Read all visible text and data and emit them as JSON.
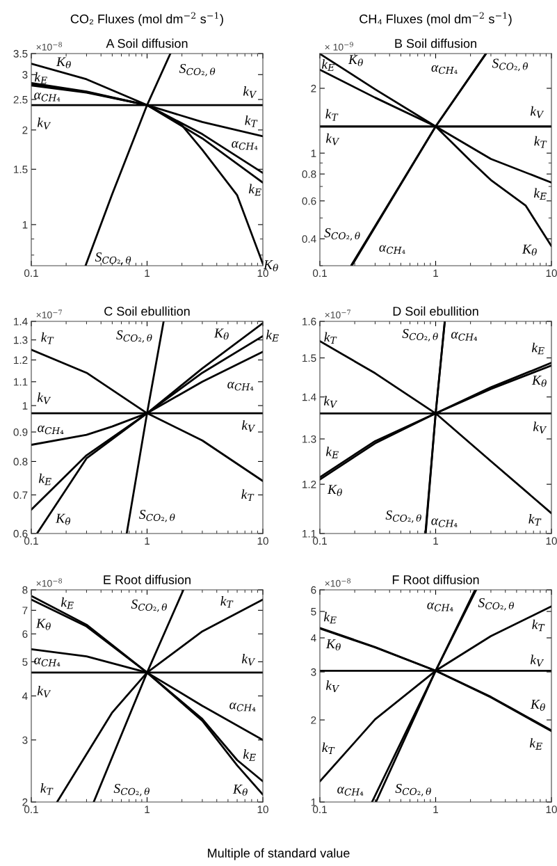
{
  "chart_data": [
    {
      "type": "line",
      "subtitle": "CO₂ Fluxes (mol dm$^{−2}$ s$^{−1}$)",
      "title": "A Soil diffusion",
      "log": "xy",
      "xlim": [
        0.1,
        10
      ],
      "xticks": [
        0.1,
        1,
        10
      ],
      "ylim": [
        0.74,
        3.5
      ],
      "yticks": [
        1,
        1.5,
        2,
        2.5,
        3,
        3.5
      ],
      "series": [
        {
          "color": "#000000",
          "x": [
            0.1,
            10
          ],
          "values": [
            2.4,
            2.4
          ]
        },
        {
          "color": "#000000",
          "x": [
            0.1,
            0.3,
            1,
            2,
            3,
            6,
            10
          ],
          "values": [
            3.25,
            2.9,
            2.4,
            2.07,
            1.73,
            1.24,
            0.75
          ]
        },
        {
          "color": "#000000",
          "x": [
            0.1,
            0.3,
            1,
            3,
            10
          ],
          "values": [
            2.82,
            2.65,
            2.4,
            2.12,
            1.91
          ]
        },
        {
          "color": "#000000",
          "x": [
            0.1,
            0.3,
            1,
            3,
            10
          ],
          "values": [
            2.8,
            2.64,
            2.4,
            1.88,
            1.36
          ]
        },
        {
          "color": "#000000",
          "x": [
            0.1,
            0.3,
            1,
            3,
            10
          ],
          "values": [
            2.77,
            2.63,
            2.4,
            1.94,
            1.46
          ]
        },
        {
          "color": "#000000",
          "x": [
            0.294,
            0.5,
            1,
            1.59
          ],
          "values": [
            0.74,
            1.25,
            2.4,
            3.5
          ]
        }
      ],
      "annotations": [
        "×10$^{−8}$",
        {
          "text": "K$_{θ}$",
          "x": 0.1,
          "y": 3.25
        },
        {
          "text": "k$_{E}$",
          "x": 0.1,
          "y": 2.8
        },
        {
          "text": "α$_{CH₄}$",
          "x": 0.1,
          "y": 2.77
        },
        {
          "text": "k$_{V}$",
          "x": 0.1,
          "y": 2.4
        },
        {
          "text": "S$_{CO₂,θ}$",
          "x": 1.59,
          "y": 3.5
        },
        {
          "text": "k$_{V}$",
          "x": 10,
          "y": 2.4
        },
        {
          "text": "k$_{T}$",
          "x": 10,
          "y": 1.91
        },
        {
          "text": "α$_{CH₄}$",
          "x": 10,
          "y": 1.46
        },
        {
          "text": "k$_{E}$",
          "x": 10,
          "y": 1.36
        },
        {
          "text": "K$_{θ}$",
          "x": 10,
          "y": 0.75
        },
        {
          "text": "S$_{CO₂,θ}$",
          "x": 0.294,
          "y": 0.74
        }
      ]
    },
    {
      "type": "line",
      "subtitle": "CH₄ Fluxes (mol dm$^{−2}$ s$^{−1}$)",
      "title": "B Soil diffusion",
      "log": "xy",
      "xlim": [
        0.1,
        10
      ],
      "xticks": [
        0.1,
        1,
        10
      ],
      "ylim": [
        0.3,
        2.9
      ],
      "yticks": [
        0.4,
        0.6,
        0.8,
        1,
        2
      ],
      "series": [
        {
          "color": "#000000",
          "x": [
            0.1,
            10
          ],
          "values": [
            1.33,
            1.33
          ]
        },
        {
          "color": "#000000",
          "x": [
            0.1,
            10
          ],
          "values": [
            1.33,
            1.33
          ]
        },
        {
          "color": "#000000",
          "x": [
            0.1,
            0.3,
            1,
            2,
            3,
            6,
            10
          ],
          "values": [
            2.89,
            1.98,
            1.33,
            0.92,
            0.75,
            0.57,
            0.37
          ]
        },
        {
          "color": "#000000",
          "x": [
            0.1,
            0.3,
            1,
            3,
            10
          ],
          "values": [
            2.44,
            1.81,
            1.33,
            0.94,
            0.73
          ]
        },
        {
          "color": "#000000",
          "x": [
            0.187,
            1,
            2.7
          ],
          "values": [
            0.302,
            1.33,
            2.89
          ]
        },
        {
          "color": "#000000",
          "x": [
            0.19,
            1,
            2.72
          ],
          "values": [
            0.302,
            1.33,
            2.89
          ]
        }
      ],
      "annotations": [
        "× 10$^{−9}$",
        {
          "text": "K$_{θ}$",
          "x": 0.1,
          "y": 2.89
        },
        {
          "text": "k$_{E}$",
          "x": 0.1,
          "y": 2.44
        },
        {
          "text": "α$_{CH₄}$",
          "x": 2.7,
          "y": 2.89
        },
        {
          "text": "S$_{CO₂,θ}$",
          "x": 2.72,
          "y": 2.89
        },
        {
          "text": "k$_{T}$",
          "x": 0.1,
          "y": 1.33
        },
        {
          "text": "k$_{V}$",
          "x": 0.1,
          "y": 1.33
        },
        {
          "text": "k$_{V}$",
          "x": 10,
          "y": 1.33
        },
        {
          "text": "k$_{T}$",
          "x": 10,
          "y": 1.33
        },
        {
          "text": "k$_{E}$",
          "x": 10,
          "y": 0.73
        },
        {
          "text": "K$_{θ}$",
          "x": 10,
          "y": 0.37
        },
        {
          "text": "S$_{CO₂,θ}$",
          "x": 0.19,
          "y": 0.302
        },
        {
          "text": "α$_{CH₄}$",
          "x": 0.187,
          "y": 0.302
        }
      ]
    },
    {
      "type": "line",
      "title": "C Soil ebullition",
      "log": "xy",
      "xlim": [
        0.1,
        10
      ],
      "xticks": [
        0.1,
        1,
        10
      ],
      "ylim": [
        0.6,
        1.4
      ],
      "yticks": [
        0.6,
        0.7,
        0.8,
        0.9,
        1,
        1.1,
        1.2,
        1.3,
        1.4
      ],
      "series": [
        {
          "color": "#000000",
          "x": [
            0.1,
            10
          ],
          "values": [
            0.97,
            0.97
          ]
        },
        {
          "color": "#000000",
          "x": [
            0.1,
            0.3,
            1,
            3,
            10
          ],
          "values": [
            1.25,
            1.14,
            0.97,
            0.87,
            0.74
          ]
        },
        {
          "color": "#000000",
          "x": [
            0.112,
            0.3,
            1,
            3,
            10
          ],
          "values": [
            0.6,
            0.81,
            0.97,
            1.16,
            1.39
          ]
        },
        {
          "color": "#000000",
          "x": [
            0.1,
            0.3,
            1,
            3,
            10
          ],
          "values": [
            0.66,
            0.82,
            0.97,
            1.14,
            1.32
          ]
        },
        {
          "color": "#000000",
          "x": [
            0.1,
            0.3,
            0.5,
            1,
            3,
            10
          ],
          "values": [
            0.855,
            0.89,
            0.92,
            0.97,
            1.1,
            1.24
          ]
        },
        {
          "color": "#000000",
          "x": [
            0.667,
            1,
            1.39
          ],
          "values": [
            0.6,
            0.97,
            1.4
          ]
        }
      ],
      "annotations": [
        "×10$^{−7}$",
        {
          "text": "k$_{T}$",
          "x": 0.1,
          "y": 1.25
        },
        {
          "text": "S$_{CO₂,θ}$",
          "x": 1.39,
          "y": 1.4
        },
        {
          "text": "K$_{θ}$",
          "x": 10,
          "y": 1.39
        },
        {
          "text": "k$_{E}$",
          "x": 10,
          "y": 1.32
        },
        {
          "text": "α$_{CH₄}$",
          "x": 10,
          "y": 1.24
        },
        {
          "text": "k$_{V}$",
          "x": 0.1,
          "y": 0.97
        },
        {
          "text": "k$_{V}$",
          "x": 10,
          "y": 0.97
        },
        {
          "text": "α$_{CH₄}$",
          "x": 0.1,
          "y": 0.855
        },
        {
          "text": "k$_{E}$",
          "x": 0.1,
          "y": 0.66
        },
        {
          "text": "k$_{T}$",
          "x": 10,
          "y": 0.74
        },
        {
          "text": "K$_{θ}$",
          "x": 0.112,
          "y": 0.6
        },
        {
          "text": "S$_{CO₂,θ}$",
          "x": 0.667,
          "y": 0.6
        }
      ]
    },
    {
      "type": "line",
      "title": "D Soil ebullition",
      "log": "xy",
      "xlim": [
        0.1,
        10
      ],
      "xticks": [
        0.1,
        1,
        10
      ],
      "ylim": [
        1.1,
        1.6
      ],
      "yticks": [
        1.1,
        1.2,
        1.3,
        1.4,
        1.5,
        1.6
      ],
      "series": [
        {
          "color": "#000000",
          "x": [
            0.1,
            10
          ],
          "values": [
            1.36,
            1.36
          ]
        },
        {
          "color": "#000000",
          "x": [
            0.1,
            0.3,
            1,
            3,
            10
          ],
          "values": [
            1.545,
            1.46,
            1.36,
            1.25,
            1.14
          ]
        },
        {
          "color": "#000000",
          "x": [
            0.1,
            0.3,
            1,
            3,
            10
          ],
          "values": [
            1.215,
            1.295,
            1.36,
            1.424,
            1.487
          ]
        },
        {
          "color": "#000000",
          "x": [
            0.1,
            0.3,
            1,
            3,
            10
          ],
          "values": [
            1.21,
            1.29,
            1.36,
            1.42,
            1.48
          ]
        },
        {
          "color": "#000000",
          "x": [
            0.815,
            1,
            1.198
          ],
          "values": [
            1.1,
            1.36,
            1.6
          ]
        },
        {
          "color": "#000000",
          "x": [
            0.82,
            1,
            1.2
          ],
          "values": [
            1.1,
            1.36,
            1.6
          ]
        }
      ],
      "annotations": [
        "×10$^{−7}$",
        {
          "text": "k$_{T}$",
          "x": 0.1,
          "y": 1.545
        },
        {
          "text": "S$_{CO₂,θ}$",
          "x": 1.198,
          "y": 1.6
        },
        {
          "text": "α$_{CH₄}$",
          "x": 1.2,
          "y": 1.6
        },
        {
          "text": "k$_{E}$",
          "x": 10,
          "y": 1.487
        },
        {
          "text": "K$_{θ}$",
          "x": 10,
          "y": 1.48
        },
        {
          "text": "k$_{V}$",
          "x": 0.1,
          "y": 1.36
        },
        {
          "text": "k$_{V}$",
          "x": 10,
          "y": 1.36
        },
        {
          "text": "k$_{E}$",
          "x": 0.1,
          "y": 1.215
        },
        {
          "text": "K$_{θ}$",
          "x": 0.1,
          "y": 1.21
        },
        {
          "text": "S$_{CO₂,θ}$",
          "x": 0.815,
          "y": 1.1
        },
        {
          "text": "α$_{CH₄}$",
          "x": 0.82,
          "y": 1.1
        },
        {
          "text": "k$_{T}$",
          "x": 10,
          "y": 1.14
        }
      ]
    },
    {
      "type": "line",
      "title": "E Root diffusion",
      "xlabel": "Multiple of standard value",
      "log": "xy",
      "xlim": [
        0.1,
        10
      ],
      "xticks": [
        0.1,
        1,
        10
      ],
      "ylim": [
        2,
        8
      ],
      "yticks": [
        2,
        3,
        4,
        5,
        6,
        7,
        8
      ],
      "series": [
        {
          "color": "#000000",
          "x": [
            0.1,
            10
          ],
          "values": [
            4.66,
            4.66
          ]
        },
        {
          "color": "#000000",
          "x": [
            0.1,
            0.3,
            1,
            3,
            6,
            10
          ],
          "values": [
            7.69,
            6.37,
            4.66,
            3.44,
            2.63,
            2.29
          ]
        },
        {
          "color": "#000000",
          "x": [
            0.1,
            0.3,
            1,
            3,
            6,
            10
          ],
          "values": [
            7.51,
            6.3,
            4.66,
            3.4,
            2.54,
            2.1
          ]
        },
        {
          "color": "#000000",
          "x": [
            0.1,
            0.3,
            1,
            3,
            10
          ],
          "values": [
            5.43,
            5.18,
            4.66,
            3.75,
            3.0
          ]
        },
        {
          "color": "#000000",
          "x": [
            0.167,
            0.5,
            1,
            3,
            10
          ],
          "values": [
            2,
            3.59,
            4.66,
            6.1,
            7.51
          ]
        },
        {
          "color": "#000000",
          "x": [
            0.346,
            1,
            2.06
          ],
          "values": [
            2,
            4.66,
            8
          ]
        }
      ],
      "annotations": [
        "×10$^{−8}$",
        {
          "text": "k$_{E}$",
          "x": 0.1,
          "y": 7.69
        },
        {
          "text": "S$_{CO₂,θ}$",
          "x": 2.06,
          "y": 8
        },
        {
          "text": "k$_{T}$",
          "x": 10,
          "y": 7.51
        },
        {
          "text": "K$_{θ}$",
          "x": 0.1,
          "y": 7.51
        },
        {
          "text": "α$_{CH₄}$",
          "x": 0.1,
          "y": 5.43
        },
        {
          "text": "k$_{V}$",
          "x": 10,
          "y": 4.66
        },
        {
          "text": "k$_{V}$",
          "x": 0.1,
          "y": 4.66
        },
        {
          "text": "α$_{CH₄}$",
          "x": 10,
          "y": 3.0
        },
        {
          "text": "k$_{E}$",
          "x": 10,
          "y": 2.29
        },
        {
          "text": "k$_{T}$",
          "x": 0.167,
          "y": 2
        },
        {
          "text": "S$_{CO₂,θ}$",
          "x": 0.346,
          "y": 2
        },
        {
          "text": "K$_{θ}$",
          "x": 10,
          "y": 2.1
        }
      ]
    },
    {
      "type": "line",
      "title": "F Root diffusion",
      "log": "xy",
      "xlim": [
        0.1,
        10
      ],
      "xticks": [
        0.1,
        1,
        10
      ],
      "ylim": [
        1,
        6
      ],
      "yticks": [
        1,
        2,
        3,
        4,
        5,
        6
      ],
      "series": [
        {
          "color": "#000000",
          "x": [
            0.1,
            10
          ],
          "values": [
            3.03,
            3.03
          ]
        },
        {
          "color": "#000000",
          "x": [
            0.1,
            0.3,
            1,
            3,
            10
          ],
          "values": [
            4.33,
            3.69,
            3.03,
            2.43,
            1.83
          ]
        },
        {
          "color": "#000000",
          "x": [
            0.1,
            0.3,
            1,
            3,
            10
          ],
          "values": [
            4.35,
            3.7,
            3.03,
            2.42,
            1.82
          ]
        },
        {
          "color": "#000000",
          "x": [
            0.1,
            0.3,
            1,
            3,
            10
          ],
          "values": [
            1.19,
            2.01,
            3.03,
            4.06,
            5.22
          ]
        },
        {
          "color": "#000000",
          "x": [
            0.282,
            1,
            2.19
          ],
          "values": [
            1,
            3.03,
            6
          ]
        },
        {
          "color": "#000000",
          "x": [
            0.305,
            1,
            2.24
          ],
          "values": [
            1,
            3.03,
            6
          ]
        }
      ],
      "annotations": [
        "×10$^{−8}$",
        {
          "text": "α$_{CH₄}$",
          "x": 2.19,
          "y": 6
        },
        {
          "text": "S$_{CO₂,θ}$",
          "x": 2.24,
          "y": 6
        },
        {
          "text": "k$_{E}$",
          "x": 0.1,
          "y": 4.35
        },
        {
          "text": "K$_{θ}$",
          "x": 0.1,
          "y": 4.33
        },
        {
          "text": "k$_{T}$",
          "x": 10,
          "y": 5.22
        },
        {
          "text": "k$_{V}$",
          "x": 10,
          "y": 3.03
        },
        {
          "text": "k$_{V}$",
          "x": 0.1,
          "y": 3.03
        },
        {
          "text": "K$_{θ}$",
          "x": 10,
          "y": 1.83
        },
        {
          "text": "k$_{E}$",
          "x": 10,
          "y": 1.82
        },
        {
          "text": "k$_{T}$",
          "x": 0.1,
          "y": 1.19
        },
        {
          "text": "α$_{CH₄}$",
          "x": 0.282,
          "y": 1
        },
        {
          "text": "S$_{CO₂,θ}$",
          "x": 0.305,
          "y": 1
        }
      ]
    }
  ]
}
